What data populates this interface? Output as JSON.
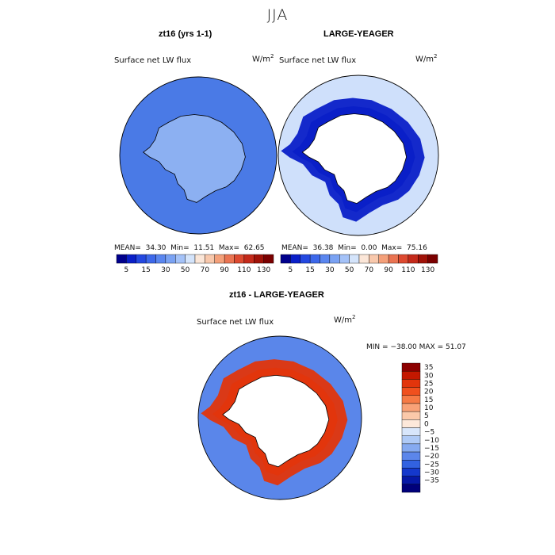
{
  "page": {
    "season": "JJA"
  },
  "chart_data": [
    {
      "type": "heatmap",
      "projection": "south-polar stereographic",
      "title": "zt16 (yrs 1-1)",
      "field": "Surface net LW flux",
      "units": "W/m",
      "units_exp": "2",
      "stats": {
        "mean_label": "MEAN=",
        "mean": "34.30",
        "min_label": "Min=",
        "min": "11.51",
        "max_label": "Max=",
        "max": "62.65"
      },
      "colorbar": {
        "orientation": "horizontal",
        "levels": [
          5,
          15,
          30,
          50,
          70,
          90,
          110,
          130
        ],
        "tick_labels": [
          "5",
          "15",
          "30",
          "50",
          "70",
          "90",
          "110",
          "130"
        ],
        "colors": [
          "#00008c",
          "#0a1fc8",
          "#2448e0",
          "#3d68ea",
          "#5a86ef",
          "#7aa2f3",
          "#a4c2f8",
          "#d4e4fb",
          "#fbe6d8",
          "#f8c8ac",
          "#f4a07a",
          "#ea7452",
          "#dd4a30",
          "#c42a1a",
          "#a01208",
          "#7a0000"
        ]
      },
      "ocean_color": "#4a7ae6",
      "continent_color": "#8cb0f2"
    },
    {
      "type": "heatmap",
      "projection": "south-polar stereographic",
      "title": "LARGE-YEAGER",
      "field": "Surface net LW flux",
      "units": "W/m",
      "units_exp": "2",
      "stats": {
        "mean_label": "MEAN=",
        "mean": "36.38",
        "min_label": "Min=",
        "min": "0.00",
        "max_label": "Max=",
        "max": "75.16"
      },
      "colorbar": {
        "orientation": "horizontal",
        "levels": [
          5,
          15,
          30,
          50,
          70,
          90,
          110,
          130
        ],
        "tick_labels": [
          "5",
          "15",
          "30",
          "50",
          "70",
          "90",
          "110",
          "130"
        ],
        "colors": [
          "#00008c",
          "#0a1fc8",
          "#2448e0",
          "#3d68ea",
          "#5a86ef",
          "#7aa2f3",
          "#a4c2f8",
          "#d4e4fb",
          "#fbe6d8",
          "#f8c8ac",
          "#f4a07a",
          "#ea7452",
          "#dd4a30",
          "#c42a1a",
          "#a01208",
          "#7a0000"
        ]
      },
      "ocean_color": "#cfe0fb",
      "ring_color": "#0a1fc8",
      "continent_color": "#ffffff"
    },
    {
      "type": "heatmap",
      "projection": "south-polar stereographic",
      "title": "zt16 - LARGE-YEAGER",
      "field": "Surface net LW flux",
      "units": "W/m",
      "units_exp": "2",
      "stats": {
        "min_label": "MIN =",
        "min": "−38.00",
        "max_label": "MAX =",
        "max": "51.07"
      },
      "colorbar": {
        "orientation": "vertical",
        "tick_labels": [
          "35",
          "30",
          "25",
          "20",
          "15",
          "10",
          "5",
          "0",
          "−5",
          "−10",
          "−15",
          "−20",
          "−25",
          "−30",
          "−35"
        ],
        "colors": [
          "#8c0000",
          "#c41800",
          "#e2350c",
          "#f0501e",
          "#f67a45",
          "#f9a277",
          "#fbc9aa",
          "#fde8da",
          "#d8e6fb",
          "#afcaf6",
          "#86aaf0",
          "#5c86ea",
          "#3262e0",
          "#1438cc",
          "#0618a6",
          "#00007a"
        ]
      },
      "ocean_color": "#5a86ea",
      "ring_color": "#e2350c",
      "continent_color": "#ffffff"
    }
  ]
}
